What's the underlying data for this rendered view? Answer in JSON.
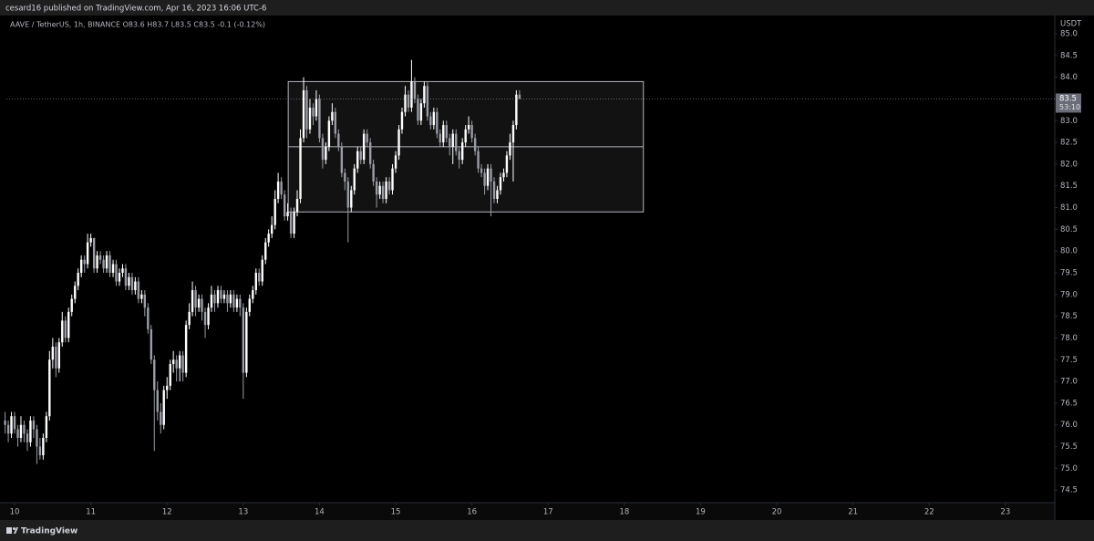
{
  "chart_data": {
    "type": "candlestick",
    "title": "cesard16 published on TradingView.com, Apr 16, 2023 16:06 UTC-6",
    "subtitle": "AAVE / TetherUS, 1h, BINANCE  O83.6 H83.7 L83.5 C83.5 -0.1 (-0.12%)",
    "y_axis_label": "USDT",
    "footer": "TradingView",
    "up_color": "#ffffff",
    "down_color": "#9a9da6",
    "grid": false,
    "xlim": [
      9.892,
      23.648
    ],
    "xticks": [
      10,
      11,
      12,
      13,
      14,
      15,
      16,
      17,
      18,
      19,
      20,
      21,
      22,
      23
    ],
    "ylim": [
      74.21,
      85.42
    ],
    "yticks": [
      74.5,
      {
        "value": 75,
        "label": "75.0"
      },
      75.5,
      {
        "value": 76,
        "label": "76.0"
      },
      76.5,
      {
        "value": 77,
        "label": "77.0"
      },
      77.5,
      {
        "value": 78,
        "label": "78.0"
      },
      78.5,
      {
        "value": 79,
        "label": "79.0"
      },
      79.5,
      {
        "value": 80,
        "label": "80.0"
      },
      80.5,
      {
        "value": 81,
        "label": "81.0"
      },
      81.5,
      {
        "value": 82,
        "label": "82.0"
      },
      82.5,
      {
        "value": 83,
        "label": "83.0"
      },
      83.5,
      {
        "value": 84,
        "label": "84.0"
      },
      84.5,
      {
        "value": 85,
        "label": "85.0"
      }
    ],
    "last_price": {
      "value": 83.5,
      "countdown": "53:10"
    },
    "range_box": {
      "x": [
        13.59,
        18.25
      ],
      "top": 83.9,
      "middle": 82.4,
      "bottom": 80.9,
      "color": "#b2b5be"
    },
    "x": [
      9.875,
      9.917,
      9.958,
      10,
      10.042,
      10.083,
      10.125,
      10.167,
      10.208,
      10.25,
      10.292,
      10.333,
      10.375,
      10.417,
      10.458,
      10.5,
      10.542,
      10.583,
      10.625,
      10.667,
      10.708,
      10.75,
      10.792,
      10.833,
      10.875,
      10.917,
      10.958,
      11,
      11.042,
      11.083,
      11.125,
      11.167,
      11.208,
      11.25,
      11.292,
      11.333,
      11.375,
      11.417,
      11.458,
      11.5,
      11.542,
      11.583,
      11.625,
      11.667,
      11.708,
      11.75,
      11.792,
      11.833,
      11.875,
      11.917,
      11.958,
      12,
      12.042,
      12.083,
      12.125,
      12.167,
      12.208,
      12.25,
      12.292,
      12.333,
      12.375,
      12.417,
      12.458,
      12.5,
      12.542,
      12.583,
      12.625,
      12.667,
      12.708,
      12.75,
      12.792,
      12.833,
      12.875,
      12.917,
      12.958,
      13,
      13.042,
      13.083,
      13.125,
      13.167,
      13.208,
      13.25,
      13.292,
      13.333,
      13.375,
      13.417,
      13.458,
      13.5,
      13.542,
      13.583,
      13.625,
      13.667,
      13.708,
      13.75,
      13.792,
      13.833,
      13.875,
      13.917,
      13.958,
      14,
      14.042,
      14.083,
      14.125,
      14.167,
      14.208,
      14.25,
      14.292,
      14.333,
      14.375,
      14.417,
      14.458,
      14.5,
      14.542,
      14.583,
      14.625,
      14.667,
      14.708,
      14.75,
      14.792,
      14.833,
      14.875,
      14.917,
      14.958,
      15,
      15.042,
      15.083,
      15.125,
      15.167,
      15.208,
      15.25,
      15.292,
      15.333,
      15.375,
      15.417,
      15.458,
      15.5,
      15.542,
      15.583,
      15.625,
      15.667,
      15.708,
      15.75,
      15.792,
      15.833,
      15.875,
      15.917,
      15.958,
      16,
      16.042,
      16.083,
      16.125,
      16.167,
      16.208,
      16.25,
      16.292,
      16.333,
      16.375,
      16.417,
      16.458,
      16.5,
      16.542,
      16.583,
      16.625
    ],
    "ohlc": [
      [
        76.1,
        76.3,
        75.8,
        76.0
      ],
      [
        76.0,
        76.1,
        75.6,
        75.8
      ],
      [
        75.8,
        76.3,
        75.7,
        76.2
      ],
      [
        76.2,
        76.3,
        75.8,
        75.9
      ],
      [
        75.9,
        76.0,
        75.5,
        75.7
      ],
      [
        75.7,
        76.2,
        75.6,
        76.0
      ],
      [
        76.0,
        76.1,
        75.6,
        75.8
      ],
      [
        75.8,
        75.9,
        75.4,
        75.6
      ],
      [
        75.6,
        76.2,
        75.5,
        76.1
      ],
      [
        76.1,
        76.2,
        75.7,
        75.9
      ],
      [
        75.9,
        76.0,
        75.1,
        75.5
      ],
      [
        75.5,
        75.7,
        75.2,
        75.3
      ],
      [
        75.3,
        75.8,
        75.2,
        75.7
      ],
      [
        75.7,
        76.3,
        75.6,
        76.2
      ],
      [
        76.2,
        77.7,
        76.1,
        77.5
      ],
      [
        77.5,
        78.0,
        77.3,
        77.8
      ],
      [
        77.8,
        77.9,
        77.1,
        77.3
      ],
      [
        77.3,
        78.0,
        77.2,
        77.9
      ],
      [
        77.9,
        78.6,
        77.8,
        78.4
      ],
      [
        78.4,
        78.5,
        77.9,
        78.0
      ],
      [
        78.0,
        78.7,
        77.9,
        78.6
      ],
      [
        78.6,
        79.0,
        78.5,
        78.9
      ],
      [
        78.9,
        79.3,
        78.8,
        79.2
      ],
      [
        79.2,
        79.6,
        79.1,
        79.5
      ],
      [
        79.5,
        79.9,
        79.4,
        79.8
      ],
      [
        79.8,
        79.9,
        79.5,
        79.7
      ],
      [
        79.7,
        80.4,
        79.6,
        80.2
      ],
      [
        80.2,
        80.4,
        80.1,
        80.3
      ],
      [
        80.3,
        80.3,
        79.5,
        79.6
      ],
      [
        79.6,
        80.0,
        79.5,
        79.9
      ],
      [
        79.9,
        80.0,
        79.7,
        79.8
      ],
      [
        79.8,
        79.9,
        79.5,
        79.6
      ],
      [
        79.6,
        80.0,
        79.5,
        79.9
      ],
      [
        79.9,
        80.0,
        79.4,
        79.5
      ],
      [
        79.5,
        79.8,
        79.4,
        79.7
      ],
      [
        79.7,
        79.8,
        79.2,
        79.3
      ],
      [
        79.3,
        79.6,
        79.2,
        79.5
      ],
      [
        79.5,
        79.7,
        79.4,
        79.6
      ],
      [
        79.6,
        79.7,
        79.1,
        79.2
      ],
      [
        79.2,
        79.5,
        79.1,
        79.4
      ],
      [
        79.4,
        79.5,
        79.0,
        79.1
      ],
      [
        79.1,
        79.4,
        79.0,
        79.3
      ],
      [
        79.3,
        79.4,
        78.8,
        78.9
      ],
      [
        78.9,
        79.1,
        78.8,
        79.0
      ],
      [
        79.0,
        79.1,
        78.5,
        78.7
      ],
      [
        78.7,
        78.8,
        78.1,
        78.2
      ],
      [
        78.2,
        78.3,
        77.4,
        77.5
      ],
      [
        77.5,
        77.6,
        75.4,
        76.8
      ],
      [
        76.8,
        77.0,
        76.1,
        76.3
      ],
      [
        76.3,
        76.5,
        75.8,
        76.0
      ],
      [
        76.0,
        76.9,
        75.9,
        76.8
      ],
      [
        76.8,
        77.1,
        76.6,
        76.9
      ],
      [
        76.9,
        77.5,
        76.8,
        77.4
      ],
      [
        77.4,
        77.7,
        77.2,
        77.5
      ],
      [
        77.5,
        77.6,
        77.0,
        77.3
      ],
      [
        77.3,
        77.7,
        77.0,
        77.6
      ],
      [
        77.6,
        77.7,
        77.0,
        77.2
      ],
      [
        77.2,
        78.4,
        77.1,
        78.3
      ],
      [
        78.3,
        78.8,
        78.2,
        78.6
      ],
      [
        78.6,
        79.3,
        78.5,
        79.1
      ],
      [
        79.1,
        79.2,
        78.5,
        78.7
      ],
      [
        78.7,
        79.0,
        78.6,
        78.9
      ],
      [
        78.9,
        79.0,
        78.4,
        78.6
      ],
      [
        78.6,
        78.7,
        78.0,
        78.3
      ],
      [
        78.3,
        78.8,
        78.2,
        78.7
      ],
      [
        78.7,
        79.2,
        78.6,
        79.0
      ],
      [
        79.0,
        79.1,
        78.6,
        78.8
      ],
      [
        78.8,
        79.2,
        78.7,
        79.1
      ],
      [
        79.1,
        79.2,
        78.8,
        78.9
      ],
      [
        78.9,
        79.1,
        78.8,
        79.0
      ],
      [
        79.0,
        79.1,
        78.6,
        78.8
      ],
      [
        78.8,
        79.1,
        78.7,
        79.0
      ],
      [
        79.0,
        79.1,
        78.6,
        78.7
      ],
      [
        78.7,
        79.0,
        78.6,
        78.9
      ],
      [
        78.9,
        79.0,
        78.5,
        78.7
      ],
      [
        78.7,
        78.8,
        76.6,
        77.2
      ],
      [
        77.2,
        78.7,
        77.1,
        78.6
      ],
      [
        78.6,
        79.0,
        78.5,
        78.9
      ],
      [
        78.9,
        79.2,
        78.8,
        79.1
      ],
      [
        79.1,
        79.6,
        79.0,
        79.5
      ],
      [
        79.5,
        79.6,
        79.2,
        79.3
      ],
      [
        79.3,
        79.9,
        79.2,
        79.8
      ],
      [
        79.8,
        80.3,
        79.7,
        80.2
      ],
      [
        80.2,
        80.5,
        80.1,
        80.4
      ],
      [
        80.4,
        80.8,
        80.3,
        80.6
      ],
      [
        80.6,
        81.4,
        80.5,
        81.2
      ],
      [
        81.2,
        81.8,
        81.1,
        81.6
      ],
      [
        81.6,
        81.7,
        81.2,
        81.3
      ],
      [
        81.3,
        81.4,
        80.7,
        80.8
      ],
      [
        80.8,
        81.1,
        80.7,
        80.9
      ],
      [
        80.9,
        81.0,
        80.3,
        80.4
      ],
      [
        80.4,
        81.0,
        80.3,
        80.9
      ],
      [
        80.9,
        81.4,
        80.8,
        81.2
      ],
      [
        81.2,
        82.8,
        81.1,
        82.6
      ],
      [
        82.6,
        84.0,
        82.5,
        83.7
      ],
      [
        83.7,
        83.8,
        82.6,
        82.8
      ],
      [
        82.8,
        83.5,
        82.7,
        83.3
      ],
      [
        83.3,
        83.4,
        82.9,
        83.1
      ],
      [
        83.1,
        83.7,
        83.0,
        83.5
      ],
      [
        83.5,
        83.6,
        82.5,
        82.6
      ],
      [
        82.6,
        82.7,
        81.9,
        82.1
      ],
      [
        82.1,
        82.5,
        82.0,
        82.4
      ],
      [
        82.4,
        83.1,
        82.3,
        83.0
      ],
      [
        83.0,
        83.4,
        82.9,
        83.2
      ],
      [
        83.2,
        83.3,
        82.6,
        82.7
      ],
      [
        82.7,
        82.8,
        82.3,
        82.4
      ],
      [
        82.4,
        82.5,
        81.7,
        81.8
      ],
      [
        81.8,
        81.9,
        81.4,
        81.6
      ],
      [
        81.6,
        81.7,
        80.2,
        81.0
      ],
      [
        81.0,
        81.5,
        80.9,
        81.4
      ],
      [
        81.4,
        82.0,
        81.3,
        81.9
      ],
      [
        81.9,
        82.4,
        81.8,
        82.3
      ],
      [
        82.3,
        82.4,
        82.0,
        82.1
      ],
      [
        82.1,
        82.8,
        82.0,
        82.7
      ],
      [
        82.7,
        82.8,
        82.4,
        82.5
      ],
      [
        82.5,
        82.6,
        81.9,
        82.0
      ],
      [
        82.0,
        82.1,
        81.5,
        81.6
      ],
      [
        81.6,
        81.7,
        81.0,
        81.3
      ],
      [
        81.3,
        81.6,
        81.2,
        81.5
      ],
      [
        81.5,
        81.6,
        81.1,
        81.2
      ],
      [
        81.2,
        81.7,
        81.1,
        81.6
      ],
      [
        81.6,
        81.7,
        81.3,
        81.4
      ],
      [
        81.4,
        82.0,
        81.3,
        81.9
      ],
      [
        81.9,
        82.3,
        81.8,
        82.2
      ],
      [
        82.2,
        82.9,
        82.1,
        82.8
      ],
      [
        82.8,
        83.3,
        82.7,
        83.2
      ],
      [
        83.2,
        83.8,
        83.1,
        83.6
      ],
      [
        83.6,
        83.7,
        83.2,
        83.3
      ],
      [
        83.3,
        84.4,
        83.2,
        83.9
      ],
      [
        83.9,
        84.0,
        83.4,
        83.5
      ],
      [
        83.5,
        83.6,
        82.9,
        83.0
      ],
      [
        83.0,
        83.5,
        82.9,
        83.4
      ],
      [
        83.4,
        83.9,
        83.3,
        83.8
      ],
      [
        83.8,
        83.9,
        83.0,
        83.1
      ],
      [
        83.1,
        83.2,
        82.8,
        82.9
      ],
      [
        82.9,
        83.3,
        82.8,
        83.2
      ],
      [
        83.2,
        83.3,
        82.6,
        82.7
      ],
      [
        82.7,
        82.8,
        82.4,
        82.5
      ],
      [
        82.5,
        83.0,
        82.4,
        82.9
      ],
      [
        82.9,
        83.0,
        82.5,
        82.6
      ],
      [
        82.6,
        82.7,
        82.2,
        82.4
      ],
      [
        82.4,
        82.8,
        82.0,
        82.7
      ],
      [
        82.7,
        82.8,
        82.2,
        82.3
      ],
      [
        82.3,
        82.4,
        81.9,
        82.1
      ],
      [
        82.1,
        82.6,
        82.0,
        82.5
      ],
      [
        82.5,
        82.9,
        82.4,
        82.8
      ],
      [
        82.8,
        83.1,
        82.7,
        82.9
      ],
      [
        82.9,
        83.0,
        82.5,
        82.6
      ],
      [
        82.6,
        82.7,
        82.2,
        82.3
      ],
      [
        82.3,
        82.4,
        81.8,
        81.9
      ],
      [
        81.9,
        82.0,
        81.7,
        81.8
      ],
      [
        81.8,
        81.9,
        81.3,
        81.5
      ],
      [
        81.5,
        82.0,
        81.4,
        81.9
      ],
      [
        81.9,
        82.0,
        80.8,
        81.6
      ],
      [
        81.6,
        81.7,
        81.1,
        81.2
      ],
      [
        81.2,
        81.5,
        81.1,
        81.4
      ],
      [
        81.4,
        81.8,
        81.3,
        81.7
      ],
      [
        81.7,
        81.9,
        81.6,
        81.8
      ],
      [
        81.8,
        82.3,
        81.7,
        82.2
      ],
      [
        82.2,
        82.7,
        82.1,
        82.5
      ],
      [
        82.5,
        83.0,
        81.6,
        82.9
      ],
      [
        82.9,
        83.7,
        82.8,
        83.6
      ],
      [
        83.6,
        83.7,
        83.5,
        83.5
      ]
    ]
  }
}
